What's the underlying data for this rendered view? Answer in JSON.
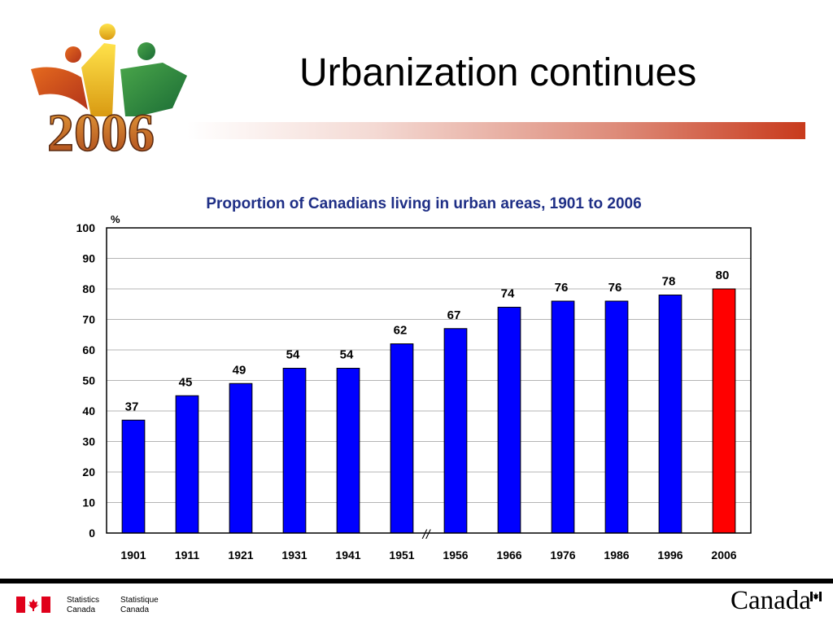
{
  "slide": {
    "title": "Urbanization continues"
  },
  "logo": {
    "text": "2006"
  },
  "chart_data": {
    "type": "bar",
    "title": "Proportion of Canadians living in urban areas, 1901 to 2006",
    "ylabel": "%",
    "xlabel": "",
    "categories": [
      "1901",
      "1911",
      "1921",
      "1931",
      "1941",
      "1951",
      "1956",
      "1966",
      "1976",
      "1986",
      "1996",
      "2006"
    ],
    "values": [
      37,
      45,
      49,
      54,
      54,
      62,
      67,
      74,
      76,
      76,
      78,
      80
    ],
    "ylim": [
      0,
      100
    ],
    "yticks": [
      "0",
      "10",
      "20",
      "30",
      "40",
      "50",
      "60",
      "70",
      "80",
      "90",
      "100"
    ],
    "grid": true,
    "axis_break_label": "//",
    "colors": {
      "bar": "#0000ff",
      "highlight": "#ff0000",
      "title": "#1f2f86"
    },
    "highlight_category": "2006"
  },
  "footer": {
    "agency_en_line1": "Statistics",
    "agency_en_line2": "Canada",
    "agency_fr_line1": "Statistique",
    "agency_fr_line2": "Canada",
    "wordmark": "Canada"
  }
}
